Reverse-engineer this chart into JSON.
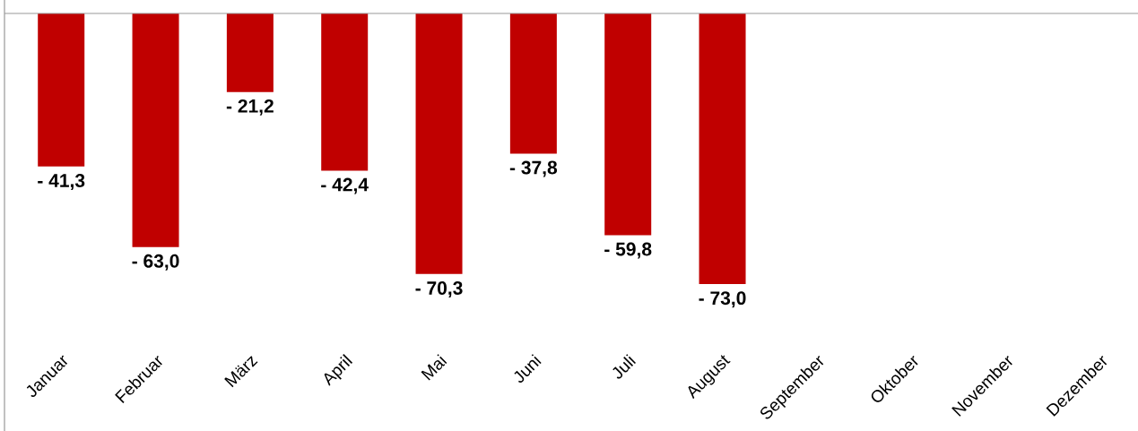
{
  "chart_data": {
    "type": "bar",
    "categories": [
      "Januar",
      "Februar",
      "März",
      "April",
      "Mai",
      "Juni",
      "Juli",
      "August",
      "September",
      "Oktober",
      "November",
      "Dezember"
    ],
    "values": [
      -41.3,
      -63.0,
      -21.2,
      -42.4,
      -70.3,
      -37.8,
      -59.8,
      -73.0,
      null,
      null,
      null,
      null
    ],
    "value_labels": [
      "- 41,3",
      "- 63,0",
      "- 21,2",
      "- 42,4",
      "- 70,3",
      "- 37,8",
      "- 59,8",
      "- 73,0",
      null,
      null,
      null,
      null
    ],
    "color": "#c00000"
  }
}
